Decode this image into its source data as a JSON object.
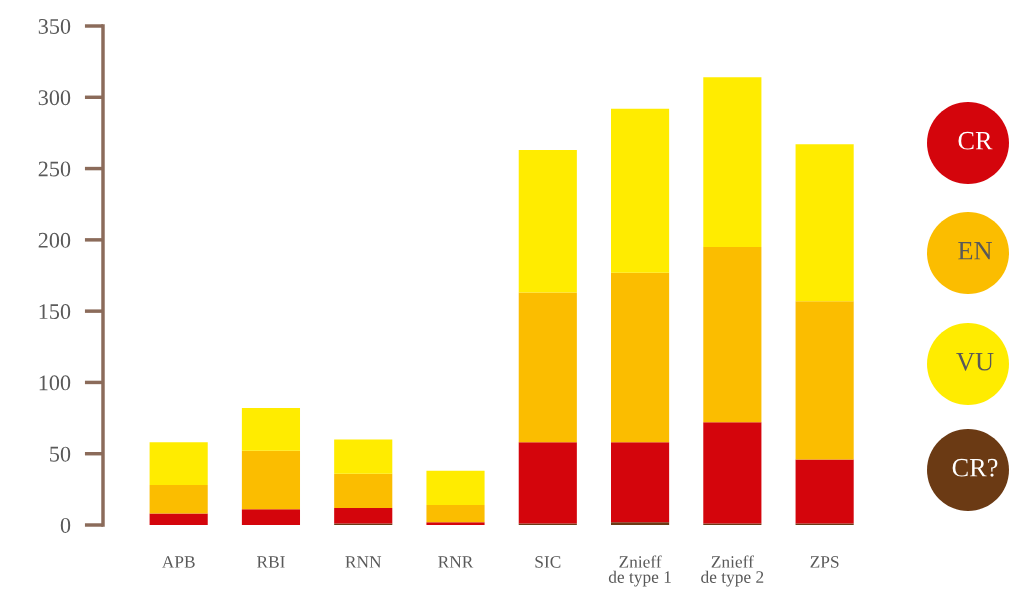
{
  "chart_data": {
    "type": "bar",
    "stacked": true,
    "categories": [
      "APB",
      "RBI",
      "RNN",
      "RNR",
      "SIC",
      "Znieff\nde type 1",
      "Znieff\nde type 2",
      "ZPS"
    ],
    "series": [
      {
        "name": "CR?",
        "color": "#6b3a14",
        "values": [
          0,
          0,
          1,
          0,
          1,
          2,
          1,
          1
        ]
      },
      {
        "name": "CR",
        "color": "#d4050c",
        "values": [
          8,
          11,
          11,
          2,
          57,
          56,
          71,
          45
        ]
      },
      {
        "name": "EN",
        "color": "#fbbd00",
        "values": [
          20,
          41,
          24,
          12,
          105,
          119,
          123,
          111
        ]
      },
      {
        "name": "VU",
        "color": "#ffec00",
        "values": [
          30,
          30,
          24,
          24,
          100,
          115,
          119,
          110
        ]
      }
    ],
    "ylim": [
      0,
      350
    ],
    "yticks": [
      0,
      50,
      100,
      150,
      200,
      250,
      300,
      350
    ],
    "grid": false,
    "legend": "right"
  }
}
